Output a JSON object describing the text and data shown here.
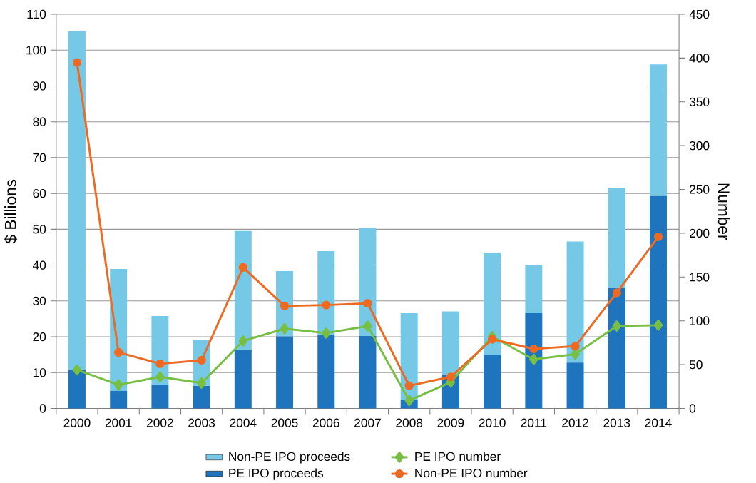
{
  "chart_data": {
    "type": "bar",
    "stacked": true,
    "categories": [
      "2000",
      "2001",
      "2002",
      "2003",
      "2004",
      "2005",
      "2006",
      "2007",
      "2008",
      "2009",
      "2010",
      "2011",
      "2012",
      "2013",
      "2014"
    ],
    "ylabel": "$ Billions",
    "y2label": "Number",
    "ylim": [
      0,
      110
    ],
    "yticks": [
      0,
      10,
      20,
      30,
      40,
      50,
      60,
      70,
      80,
      90,
      100,
      110
    ],
    "y2lim": [
      0,
      450
    ],
    "y2ticks": [
      0,
      50,
      100,
      150,
      200,
      250,
      300,
      350,
      400,
      450
    ],
    "grid": "y",
    "legend": "bottom",
    "series": [
      {
        "name": "PE IPO proceeds",
        "color": "#1f75bd",
        "values": [
          10.7,
          4.9,
          6.5,
          6.3,
          16.4,
          20.1,
          20.6,
          20.2,
          2.4,
          9.4,
          14.9,
          26.6,
          12.8,
          33.6,
          59.3
        ]
      },
      {
        "name": "Non-PE IPO proceeds",
        "color": "#75c9e6",
        "values": [
          94.7,
          34.0,
          19.3,
          12.8,
          33.1,
          18.2,
          23.3,
          30.1,
          24.2,
          17.7,
          28.4,
          13.5,
          33.8,
          28.0,
          36.7
        ]
      },
      {
        "name": "PE IPO number",
        "type": "line",
        "axis": "y2",
        "marker": "diamond",
        "color": "#77bf43",
        "values": [
          44,
          27,
          36,
          29,
          77,
          91,
          86,
          94,
          9,
          30,
          82,
          56,
          62,
          94,
          95
        ]
      },
      {
        "name": "Non-PE IPO number",
        "type": "line",
        "axis": "y2",
        "marker": "circle",
        "color": "#ee6a22",
        "values": [
          395,
          64,
          51,
          55,
          161,
          117,
          118,
          120,
          26,
          36,
          79,
          68,
          71,
          132,
          196
        ]
      }
    ]
  }
}
